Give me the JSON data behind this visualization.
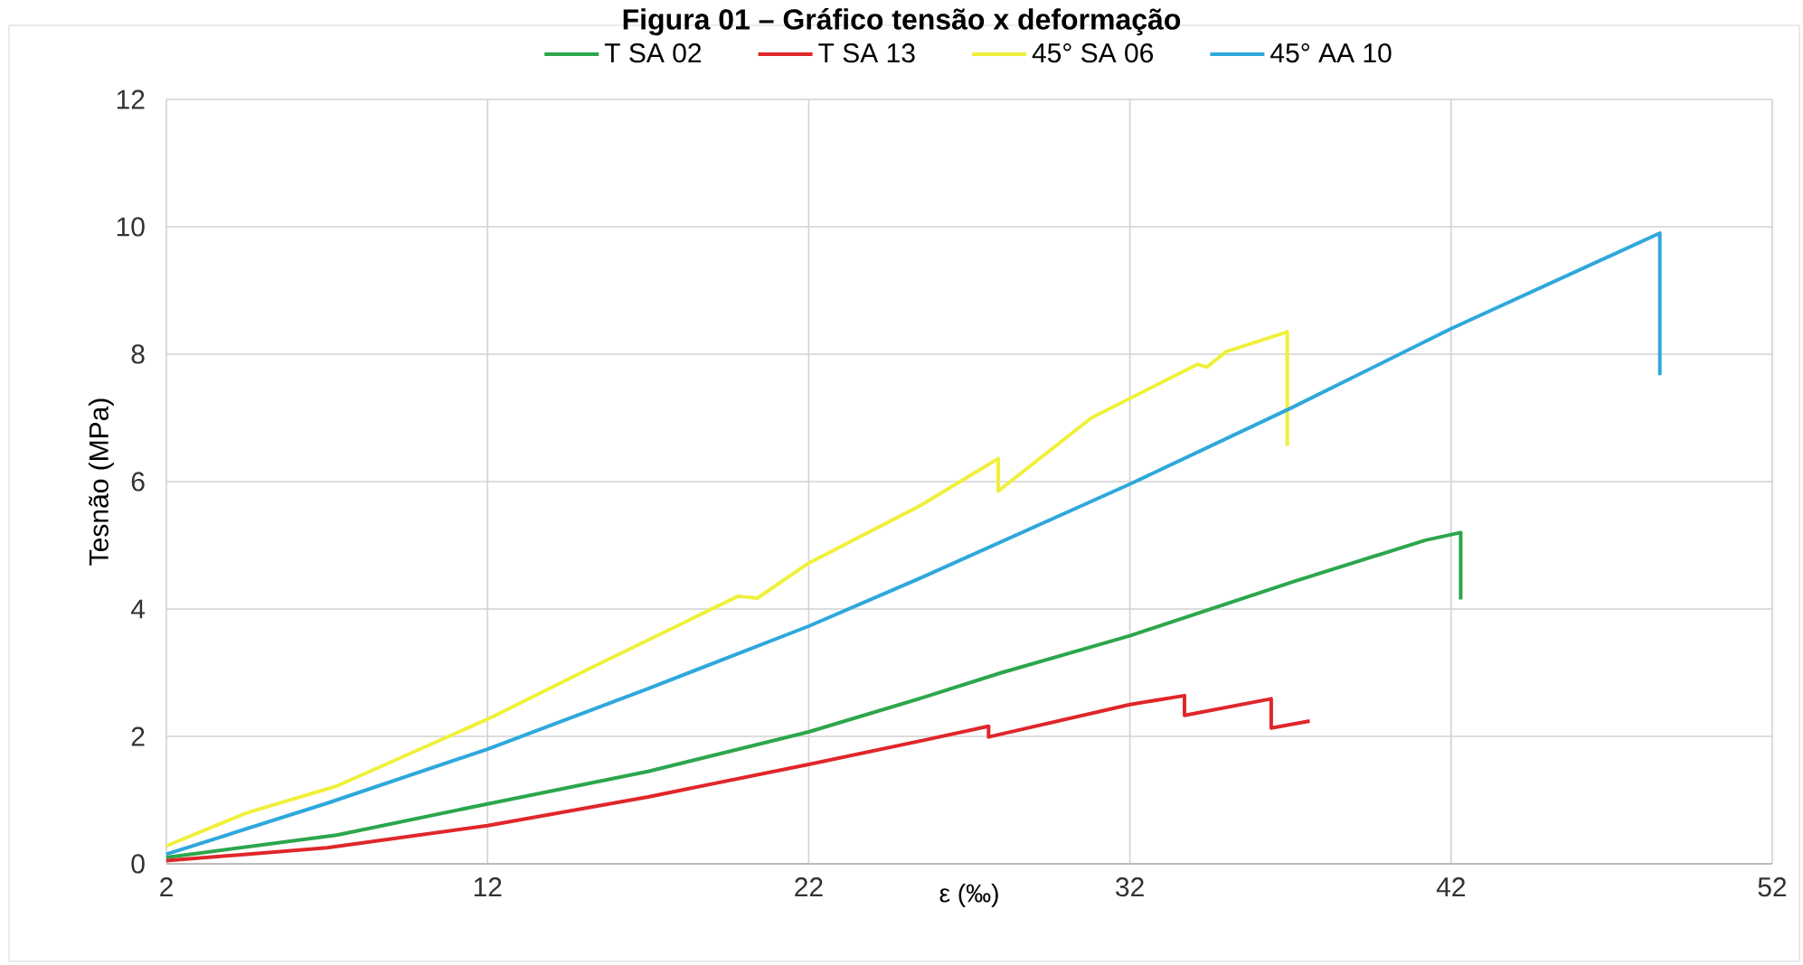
{
  "chart_data": {
    "type": "line",
    "title": "Figura 01 – Gráfico tensão x deformação",
    "xlabel": "ε (‰)",
    "ylabel": "Tesnão (MPa)",
    "xlim": [
      2,
      52
    ],
    "xticks": [
      2,
      12,
      22,
      32,
      42,
      52
    ],
    "ylim": [
      0,
      12
    ],
    "yticks": [
      0,
      2,
      4,
      6,
      8,
      10,
      12
    ],
    "grid": true,
    "legend": "top",
    "series": [
      {
        "name": "T SA 02",
        "color": "#2ca64c",
        "x": [
          2,
          7.3,
          12,
          17,
          22,
          25.5,
          28,
          32,
          37.1,
          41.2,
          42.3,
          42.3
        ],
        "values": [
          0.1,
          0.45,
          0.94,
          1.45,
          2.07,
          2.6,
          3.0,
          3.58,
          4.43,
          5.08,
          5.2,
          4.15
        ]
      },
      {
        "name": "T SA 13",
        "color": "#e0262a",
        "x": [
          2,
          7,
          12,
          17,
          22,
          25.5,
          27.6,
          27.6,
          32,
          33.7,
          33.7,
          36.4,
          36.4,
          37.6
        ],
        "values": [
          0.05,
          0.25,
          0.6,
          1.05,
          1.56,
          1.93,
          2.16,
          1.99,
          2.5,
          2.64,
          2.33,
          2.59,
          2.13,
          2.24
        ]
      },
      {
        "name": "45° SA 06",
        "color": "#f0f03c",
        "x": [
          2,
          4.5,
          7.3,
          12,
          15.2,
          19.8,
          20.4,
          22,
          25.5,
          27.9,
          27.9,
          30.8,
          34.1,
          34.4,
          35,
          36.9,
          36.9
        ],
        "values": [
          0.28,
          0.8,
          1.22,
          2.27,
          3.07,
          4.2,
          4.17,
          4.72,
          5.63,
          6.36,
          5.85,
          7.0,
          7.84,
          7.8,
          8.04,
          8.35,
          6.56
        ]
      },
      {
        "name": "45° AA 10",
        "color": "#2ea8dc",
        "x": [
          2,
          7,
          12,
          17,
          22,
          25.5,
          32,
          37,
          42,
          48.5,
          48.5
        ],
        "values": [
          0.15,
          0.95,
          1.8,
          2.75,
          3.73,
          4.49,
          5.96,
          7.15,
          8.4,
          9.9,
          7.67
        ]
      }
    ]
  }
}
